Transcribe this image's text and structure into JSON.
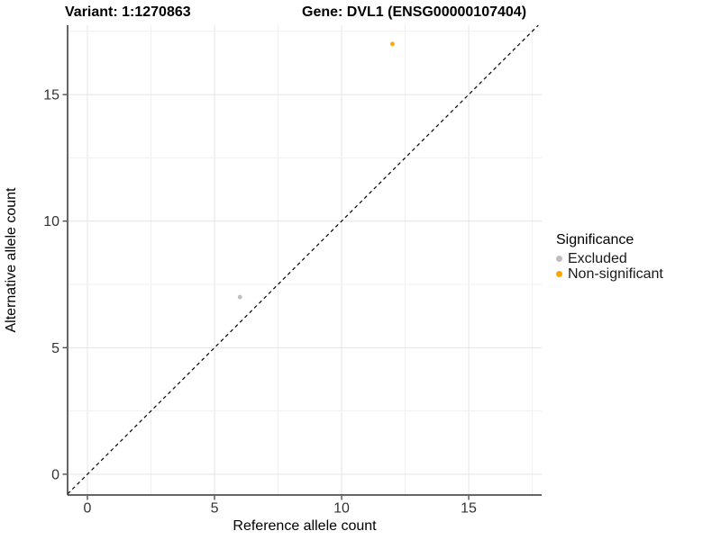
{
  "chart_data": {
    "type": "scatter",
    "title_left": "Variant: 1:1270863",
    "title_right": "Gene: DVL1 (ENSG00000107404)",
    "xlabel": "Reference allele count",
    "ylabel": "Alternative allele count",
    "xlim": [
      -0.78,
      17.87
    ],
    "ylim": [
      -0.82,
      17.74
    ],
    "x_ticks": [
      0,
      5,
      10,
      15
    ],
    "y_ticks": [
      0,
      5,
      10,
      15
    ],
    "minor_tick_step": 2.5,
    "grid": true,
    "legend_title": "Significance",
    "legend_position": "right",
    "identity_line": {
      "style": "dashed",
      "slope": 1,
      "intercept": 0,
      "color": "#000000"
    },
    "series": [
      {
        "name": "Excluded",
        "color": "#BEBEBE",
        "points": [
          [
            6,
            7
          ]
        ]
      },
      {
        "name": "Non-significant",
        "color": "#FFA500",
        "points": [
          [
            12,
            17
          ]
        ]
      }
    ],
    "colors": {
      "grid_major": "#e4e4e4",
      "grid_minor": "#f0f0f0",
      "axis": "#333333",
      "tick_text": "#333333"
    }
  }
}
